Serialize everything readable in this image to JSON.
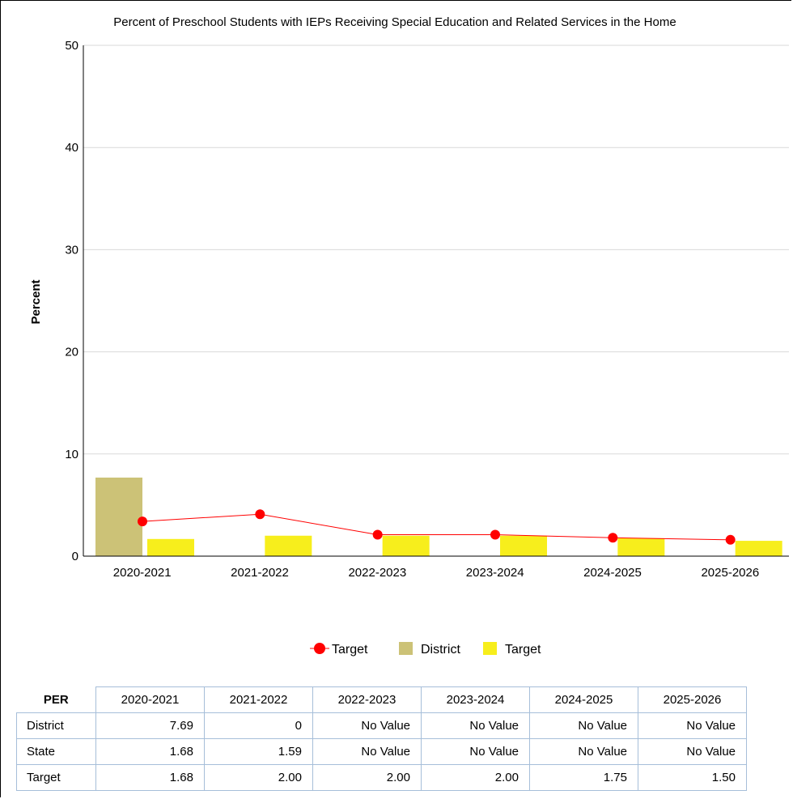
{
  "colors": {
    "district_bar": "#ccc277",
    "target_bar": "#f7ee1c",
    "target_line": "#ff0000",
    "grid": "#d9d9d9",
    "table_border": "#a6bed9"
  },
  "chart_data": {
    "type": "bar",
    "title": "Percent of Preschool Students with IEPs Receiving Special Education and Related Services in the Home",
    "xlabel": "",
    "ylabel": "Percent",
    "ylim": [
      0,
      50
    ],
    "yticks": [
      0,
      10,
      20,
      30,
      40,
      50
    ],
    "grid": true,
    "legend_position": "bottom",
    "categories": [
      "2020-2021",
      "2021-2022",
      "2022-2023",
      "2023-2024",
      "2024-2025",
      "2025-2026"
    ],
    "series": [
      {
        "name": "District",
        "type": "bar",
        "color": "#ccc277",
        "values": [
          7.69,
          0,
          null,
          null,
          null,
          null
        ]
      },
      {
        "name": "Target",
        "type": "bar",
        "color": "#f7ee1c",
        "values": [
          1.68,
          2.0,
          2.0,
          2.0,
          1.75,
          1.5
        ]
      },
      {
        "name": "Target",
        "type": "line",
        "color": "#ff0000",
        "values": [
          3.4,
          4.1,
          2.1,
          2.1,
          1.8,
          1.6
        ]
      }
    ],
    "legend": [
      {
        "label": "Target",
        "marker": "line-dot",
        "color": "#ff0000"
      },
      {
        "label": "District",
        "marker": "square",
        "color": "#ccc277"
      },
      {
        "label": "Target",
        "marker": "square",
        "color": "#f7ee1c"
      }
    ]
  },
  "table": {
    "corner": "PER",
    "columns": [
      "2020-2021",
      "2021-2022",
      "2022-2023",
      "2023-2024",
      "2024-2025",
      "2025-2026"
    ],
    "rows": [
      {
        "label": "District",
        "cells": [
          "7.69",
          "0",
          "No Value",
          "No Value",
          "No Value",
          "No Value"
        ]
      },
      {
        "label": "State",
        "cells": [
          "1.68",
          "1.59",
          "No Value",
          "No Value",
          "No Value",
          "No Value"
        ]
      },
      {
        "label": "Target",
        "cells": [
          "1.68",
          "2.00",
          "2.00",
          "2.00",
          "1.75",
          "1.50"
        ]
      }
    ]
  }
}
